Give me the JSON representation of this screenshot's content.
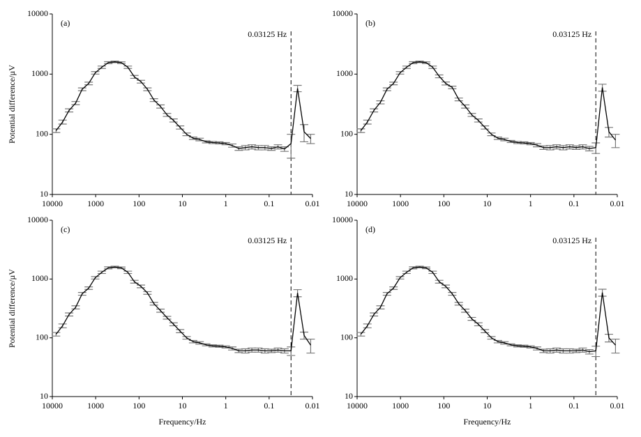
{
  "chart_data": [
    {
      "type": "line",
      "label": "(a)",
      "ylabel": "Potential difference/µV",
      "color": "#000000",
      "error_color": "#777777",
      "x": [
        8192,
        5793,
        4096,
        2896,
        2048,
        1448,
        1024,
        724,
        512,
        362,
        256,
        181,
        128,
        90.5,
        64,
        45.3,
        32,
        22.6,
        16,
        11.3,
        8,
        5.66,
        4,
        2.83,
        2,
        1.41,
        1,
        0.707,
        0.5,
        0.354,
        0.25,
        0.177,
        0.125,
        0.0884,
        0.0625,
        0.0442,
        0.03125,
        0.0221,
        0.0156,
        0.011
      ],
      "values": [
        115,
        160,
        250,
        330,
        560,
        700,
        1050,
        1300,
        1550,
        1600,
        1550,
        1300,
        900,
        750,
        560,
        370,
        290,
        210,
        170,
        130,
        100,
        86,
        82,
        75,
        73,
        72,
        70,
        65,
        58,
        60,
        62,
        60,
        60,
        58,
        62,
        57,
        70,
        580,
        110,
        85
      ],
      "errors": [
        8,
        12,
        15,
        20,
        30,
        35,
        50,
        60,
        60,
        50,
        50,
        60,
        50,
        40,
        30,
        20,
        18,
        12,
        10,
        8,
        5,
        4,
        4,
        3,
        3,
        3,
        3,
        4,
        4,
        5,
        5,
        5,
        5,
        4,
        5,
        5,
        30,
        70,
        35,
        15
      ],
      "xlim": [
        10000,
        0.01
      ],
      "ylim": [
        10,
        10000
      ],
      "xticks": [
        10000,
        1000,
        100,
        10,
        1,
        0.1,
        0.01
      ],
      "yticks": [
        10,
        100,
        1000,
        10000
      ],
      "log_x": true,
      "log_y": true,
      "annotation": {
        "text": "0.03125 Hz",
        "x": 0.03125
      }
    },
    {
      "type": "line",
      "label": "(b)",
      "color": "#000000",
      "error_color": "#777777",
      "x": [
        8192,
        5793,
        4096,
        2896,
        2048,
        1448,
        1024,
        724,
        512,
        362,
        256,
        181,
        128,
        90.5,
        64,
        45.3,
        32,
        22.6,
        16,
        11.3,
        8,
        5.66,
        4,
        2.83,
        2,
        1.41,
        1,
        0.707,
        0.5,
        0.354,
        0.25,
        0.177,
        0.125,
        0.0884,
        0.0625,
        0.0442,
        0.03125,
        0.0221,
        0.0156,
        0.011
      ],
      "values": [
        115,
        160,
        250,
        340,
        560,
        700,
        1050,
        1300,
        1550,
        1600,
        1550,
        1300,
        920,
        700,
        600,
        380,
        290,
        210,
        170,
        130,
        100,
        86,
        82,
        76,
        73,
        72,
        70,
        66,
        60,
        60,
        62,
        60,
        62,
        60,
        62,
        58,
        60,
        600,
        110,
        80
      ],
      "errors": [
        8,
        12,
        15,
        20,
        30,
        35,
        50,
        60,
        60,
        50,
        50,
        60,
        50,
        40,
        30,
        20,
        18,
        12,
        10,
        8,
        5,
        4,
        4,
        3,
        3,
        3,
        3,
        4,
        4,
        5,
        5,
        5,
        5,
        4,
        5,
        5,
        12,
        80,
        20,
        20
      ],
      "xlim": [
        10000,
        0.01
      ],
      "ylim": [
        10,
        10000
      ],
      "xticks": [
        10000,
        1000,
        100,
        10,
        1,
        0.1,
        0.01
      ],
      "yticks": [
        10,
        100,
        1000,
        10000
      ],
      "log_x": true,
      "log_y": true,
      "annotation": {
        "text": "0.03125 Hz",
        "x": 0.03125
      }
    },
    {
      "type": "line",
      "label": "(c)",
      "ylabel": "Potential difference/µV",
      "xlabel": "Frequency/Hz",
      "color": "#000000",
      "error_color": "#777777",
      "x": [
        8192,
        5793,
        4096,
        2896,
        2048,
        1448,
        1024,
        724,
        512,
        362,
        256,
        181,
        128,
        90.5,
        64,
        45.3,
        32,
        22.6,
        16,
        11.3,
        8,
        5.66,
        4,
        2.83,
        2,
        1.41,
        1,
        0.707,
        0.5,
        0.354,
        0.25,
        0.177,
        0.125,
        0.0884,
        0.0625,
        0.0442,
        0.03125,
        0.0221,
        0.0156,
        0.011
      ],
      "values": [
        115,
        160,
        250,
        330,
        560,
        700,
        1050,
        1300,
        1550,
        1600,
        1550,
        1300,
        900,
        750,
        580,
        380,
        290,
        220,
        170,
        130,
        100,
        86,
        82,
        76,
        73,
        72,
        70,
        66,
        60,
        60,
        62,
        62,
        60,
        60,
        62,
        60,
        60,
        580,
        110,
        75
      ],
      "errors": [
        8,
        12,
        15,
        20,
        30,
        35,
        50,
        60,
        60,
        50,
        50,
        60,
        50,
        40,
        30,
        20,
        18,
        12,
        10,
        8,
        5,
        4,
        4,
        3,
        3,
        3,
        3,
        4,
        4,
        5,
        5,
        5,
        5,
        4,
        5,
        5,
        10,
        80,
        15,
        20
      ],
      "xlim": [
        10000,
        0.01
      ],
      "ylim": [
        10,
        10000
      ],
      "xticks": [
        10000,
        1000,
        100,
        10,
        1,
        0.1,
        0.01
      ],
      "yticks": [
        10,
        100,
        1000,
        10000
      ],
      "log_x": true,
      "log_y": true,
      "annotation": {
        "text": "0.03125 Hz",
        "x": 0.03125
      }
    },
    {
      "type": "line",
      "label": "(d)",
      "xlabel": "Frequency/Hz",
      "color": "#000000",
      "error_color": "#777777",
      "x": [
        8192,
        5793,
        4096,
        2896,
        2048,
        1448,
        1024,
        724,
        512,
        362,
        256,
        181,
        128,
        90.5,
        64,
        45.3,
        32,
        22.6,
        16,
        11.3,
        8,
        5.66,
        4,
        2.83,
        2,
        1.41,
        1,
        0.707,
        0.5,
        0.354,
        0.25,
        0.177,
        0.125,
        0.0884,
        0.0625,
        0.0442,
        0.03125,
        0.0221,
        0.0156,
        0.011
      ],
      "values": [
        115,
        160,
        250,
        330,
        560,
        700,
        1050,
        1300,
        1550,
        1600,
        1550,
        1300,
        900,
        750,
        560,
        380,
        290,
        210,
        170,
        130,
        100,
        86,
        82,
        76,
        73,
        72,
        70,
        66,
        60,
        60,
        62,
        60,
        60,
        60,
        62,
        58,
        60,
        590,
        100,
        75
      ],
      "errors": [
        8,
        12,
        15,
        20,
        30,
        35,
        50,
        60,
        60,
        50,
        50,
        60,
        50,
        40,
        30,
        20,
        18,
        12,
        10,
        8,
        5,
        4,
        4,
        3,
        3,
        3,
        3,
        4,
        4,
        5,
        5,
        5,
        5,
        4,
        5,
        5,
        12,
        80,
        15,
        20
      ],
      "xlim": [
        10000,
        0.01
      ],
      "ylim": [
        10,
        10000
      ],
      "xticks": [
        10000,
        1000,
        100,
        10,
        1,
        0.1,
        0.01
      ],
      "yticks": [
        10,
        100,
        1000,
        10000
      ],
      "log_x": true,
      "log_y": true,
      "annotation": {
        "text": "0.03125 Hz",
        "x": 0.03125
      }
    }
  ]
}
